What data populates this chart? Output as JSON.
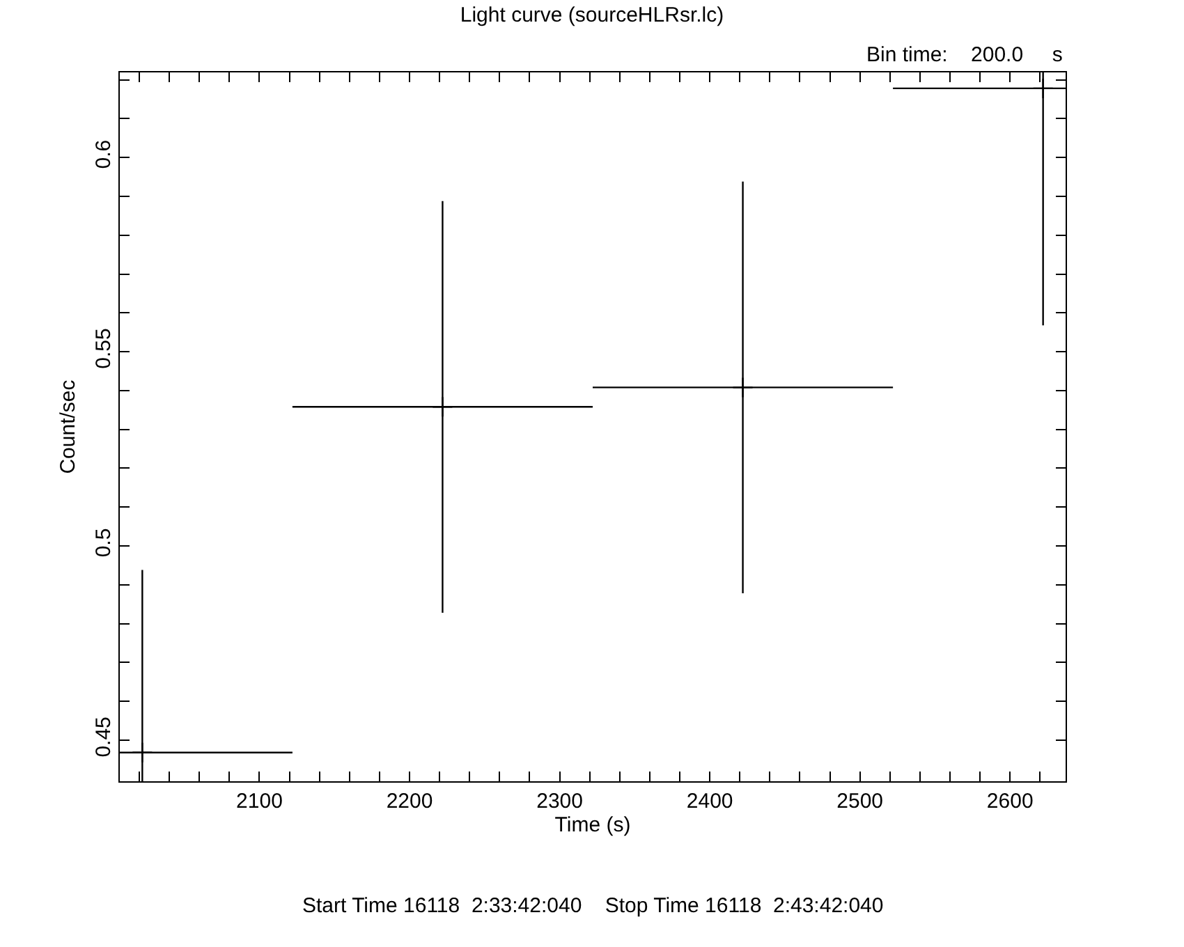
{
  "chart_data": {
    "type": "scatter",
    "title": "Light curve (sourceHLRsr.lc)",
    "xlabel": "Time (s)",
    "ylabel": "Count/sec",
    "annotations": [
      "Bin time:    200.0     s",
      "Start Time 16118  2:33:42:040    Stop Time 16118  2:43:42:040"
    ],
    "x": [
      2022,
      2222,
      2422,
      2622
    ],
    "values": [
      0.4468,
      0.5358,
      0.5408,
      0.6178
    ],
    "errors": [
      0.047,
      0.053,
      0.053,
      0.061
    ],
    "xerrors": [
      100,
      100,
      100,
      100
    ],
    "color": "#000000",
    "marker": "cross",
    "xlim": [
      2007,
      2637
    ],
    "ylim": [
      0.4394,
      0.6219
    ],
    "xticks": [
      {
        "value": 2020,
        "label": null
      },
      {
        "value": 2040,
        "label": null
      },
      {
        "value": 2060,
        "label": null
      },
      {
        "value": 2080,
        "label": null
      },
      2100,
      {
        "value": 2120,
        "label": null
      },
      {
        "value": 2140,
        "label": null
      },
      {
        "value": 2160,
        "label": null
      },
      {
        "value": 2180,
        "label": null
      },
      2200,
      {
        "value": 2220,
        "label": null
      },
      {
        "value": 2240,
        "label": null
      },
      {
        "value": 2260,
        "label": null
      },
      {
        "value": 2280,
        "label": null
      },
      2300,
      {
        "value": 2320,
        "label": null
      },
      {
        "value": 2340,
        "label": null
      },
      {
        "value": 2360,
        "label": null
      },
      {
        "value": 2380,
        "label": null
      },
      2400,
      {
        "value": 2420,
        "label": null
      },
      {
        "value": 2440,
        "label": null
      },
      {
        "value": 2460,
        "label": null
      },
      {
        "value": 2480,
        "label": null
      },
      2500,
      {
        "value": 2520,
        "label": null
      },
      {
        "value": 2540,
        "label": null
      },
      {
        "value": 2560,
        "label": null
      },
      {
        "value": 2580,
        "label": null
      },
      2600,
      {
        "value": 2620,
        "label": null
      }
    ],
    "yticks": [
      0.45,
      {
        "value": 0.46,
        "label": null
      },
      {
        "value": 0.47,
        "label": null
      },
      {
        "value": 0.48,
        "label": null
      },
      {
        "value": 0.49,
        "label": null
      },
      0.5,
      {
        "value": 0.51,
        "label": null
      },
      {
        "value": 0.52,
        "label": null
      },
      {
        "value": 0.53,
        "label": null
      },
      {
        "value": 0.54,
        "label": null
      },
      0.55,
      {
        "value": 0.56,
        "label": null
      },
      {
        "value": 0.57,
        "label": null
      },
      {
        "value": 0.58,
        "label": null
      },
      {
        "value": 0.59,
        "label": null
      },
      0.6,
      {
        "value": 0.61,
        "label": null
      },
      {
        "value": 0.62,
        "label": null
      }
    ]
  }
}
